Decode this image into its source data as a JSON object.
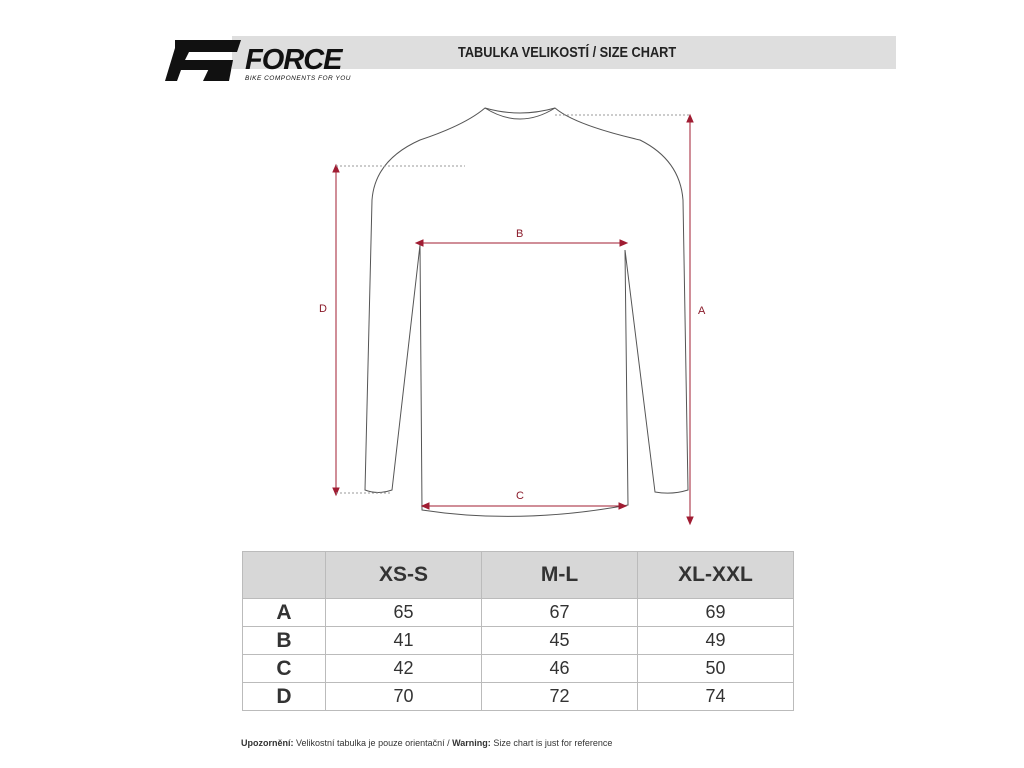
{
  "header": {
    "brand": "FORCE",
    "tagline": "BIKE COMPONENTS FOR YOU",
    "title": "TABULKA VELIKOSTÍ / SIZE CHART"
  },
  "diagram": {
    "labels": {
      "a": "A",
      "b": "B",
      "c": "C",
      "d": "D"
    },
    "line_color": "#a01c32"
  },
  "table": {
    "columns": [
      "XS-S",
      "M-L",
      "XL-XXL"
    ],
    "rows": [
      {
        "label": "A",
        "values": [
          "65",
          "67",
          "69"
        ]
      },
      {
        "label": "B",
        "values": [
          "41",
          "45",
          "49"
        ]
      },
      {
        "label": "C",
        "values": [
          "42",
          "46",
          "50"
        ]
      },
      {
        "label": "D",
        "values": [
          "70",
          "72",
          "74"
        ]
      }
    ]
  },
  "note": {
    "cz_label": "Upozornění:",
    "cz_text": "Velikostní tabulka je pouze orientační / ",
    "en_label": "Warning:",
    "en_text": "Size chart is just for reference"
  }
}
